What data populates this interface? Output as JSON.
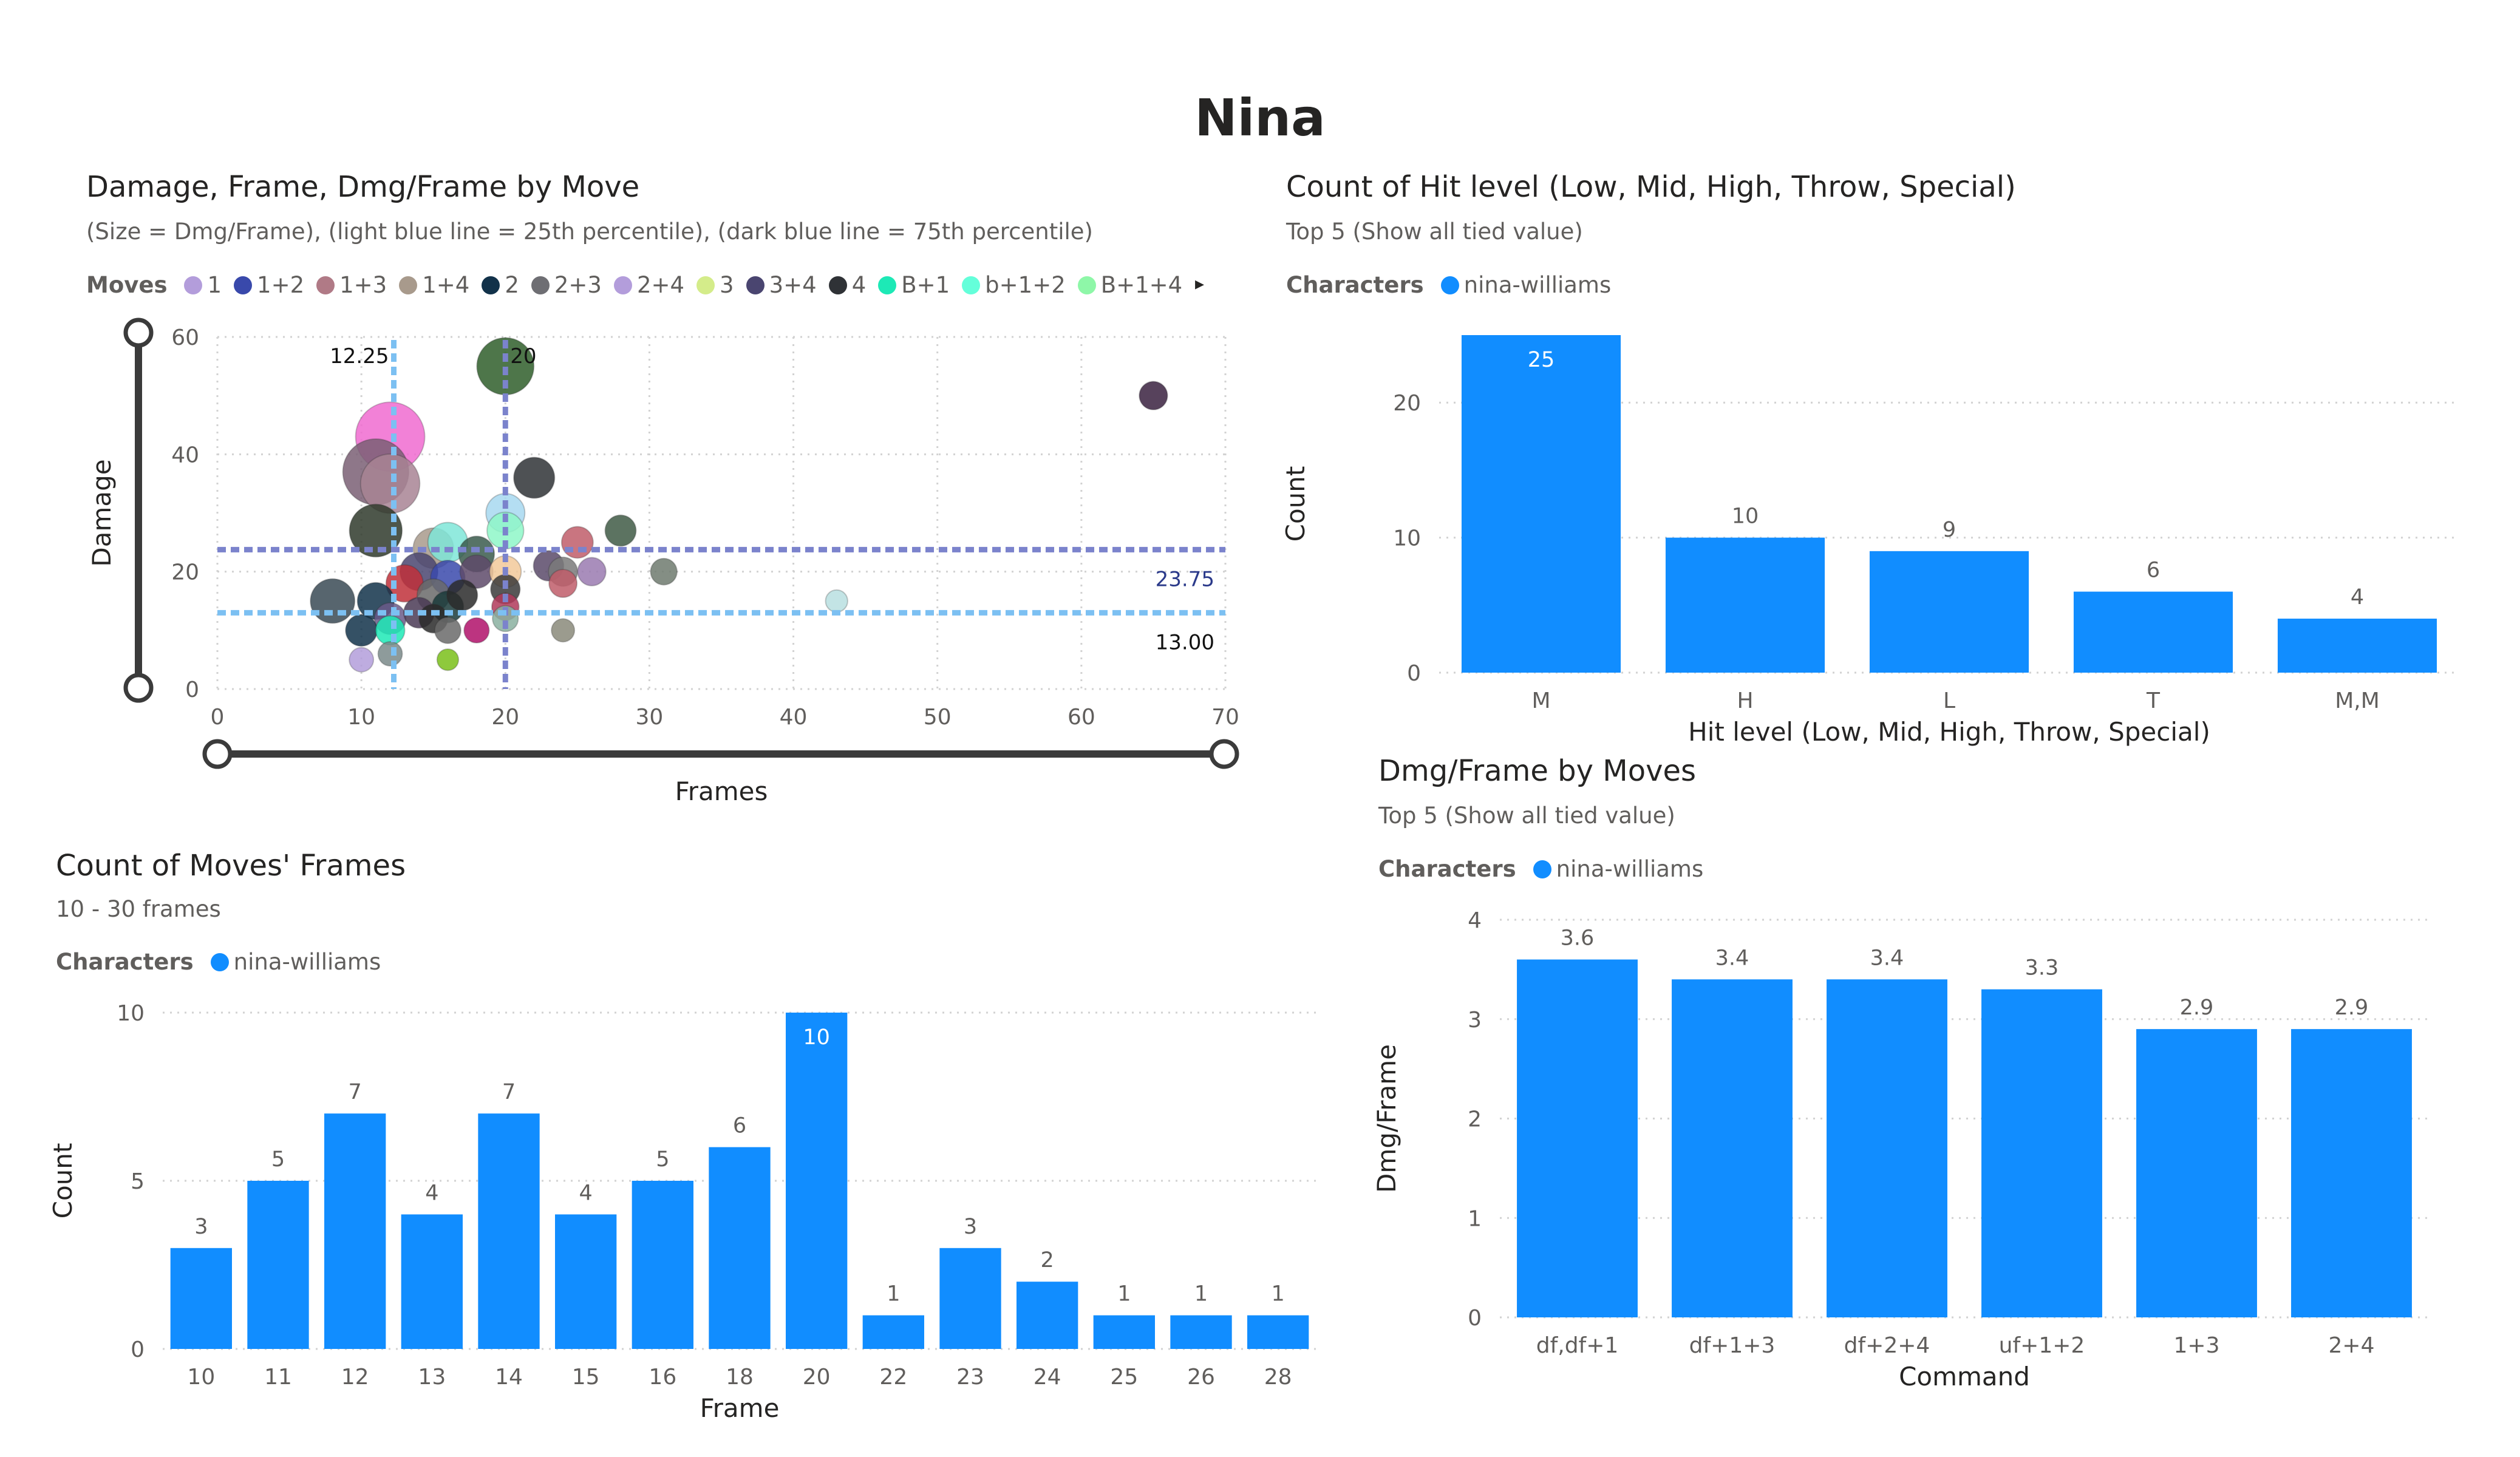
{
  "page": {
    "title": "Nina"
  },
  "scatter": {
    "title": "Damage, Frame, Dmg/Frame by Move",
    "subtitle": "(Size = Dmg/Frame), (light blue line = 25th percentile), (dark blue line = 75th percentile)",
    "legend_title": "Moves",
    "legend": [
      {
        "name": "1",
        "color": "#b39ddb"
      },
      {
        "name": "1+2",
        "color": "#3949ab"
      },
      {
        "name": "1+3",
        "color": "#b07a86"
      },
      {
        "name": "1+4",
        "color": "#a89a8c"
      },
      {
        "name": "2",
        "color": "#12324a"
      },
      {
        "name": "2+3",
        "color": "#6e6e73"
      },
      {
        "name": "2+4",
        "color": "#b39ddb"
      },
      {
        "name": "3",
        "color": "#d4ec8a"
      },
      {
        "name": "3+4",
        "color": "#4a4570"
      },
      {
        "name": "4",
        "color": "#2f3236"
      },
      {
        "name": "B+1",
        "color": "#1de9b6"
      },
      {
        "name": "b+1+2",
        "color": "#64ffda"
      },
      {
        "name": "B+1+4",
        "color": "#8ef7a8"
      }
    ]
  },
  "hit": {
    "title": "Count of Hit level (Low, Mid, High, Throw, Special)",
    "subtitle": "Top 5 (Show all tied value)",
    "legend_title": "Characters",
    "legend_name": "nina-williams"
  },
  "moves": {
    "title": "Count of Moves' Frames",
    "subtitle": "10 - 30 frames",
    "legend_title": "Characters",
    "legend_name": "nina-williams"
  },
  "dmg": {
    "title": "Dmg/Frame by Moves",
    "subtitle": "Top 5 (Show all tied value)",
    "legend_title": "Characters",
    "legend_name": "nina-williams"
  },
  "colors": {
    "bar": "#118dff",
    "p25": "#7cc0f2",
    "p75": "#7b83cc"
  },
  "chart_data": [
    {
      "type": "scatter",
      "title": "Damage, Frame, Dmg/Frame by Move",
      "xlabel": "Frames",
      "ylabel": "Damage",
      "xlim": [
        0,
        70
      ],
      "ylim": [
        0,
        60
      ],
      "xticks": [
        "0",
        "10",
        "20",
        "30",
        "40",
        "50",
        "60",
        "70"
      ],
      "yticks": [
        "0",
        "20",
        "40",
        "60"
      ],
      "grid": true,
      "legend_position": "top",
      "reference_lines": {
        "x": [
          {
            "value": 12.25,
            "label": "12.25",
            "color": "#7cc0f2"
          },
          {
            "value": 20,
            "label": "20",
            "color": "#7b83cc"
          }
        ],
        "y": [
          {
            "value": 13.0,
            "label": "13.00",
            "color": "#7cc0f2"
          },
          {
            "value": 23.75,
            "label": "23.75",
            "color": "#7b83cc"
          }
        ]
      },
      "points": [
        {
          "x": 20,
          "y": 55,
          "size": 2.75,
          "color": "#2f5e2a"
        },
        {
          "x": 65,
          "y": 50,
          "size": 0.77,
          "color": "#3a2140"
        },
        {
          "x": 12,
          "y": 43,
          "size": 3.58,
          "color": "#f06bd0"
        },
        {
          "x": 11,
          "y": 37,
          "size": 3.36,
          "color": "#7a5f74"
        },
        {
          "x": 12,
          "y": 35,
          "size": 2.9,
          "color": "#a88494"
        },
        {
          "x": 22,
          "y": 36,
          "size": 1.64,
          "color": "#2f3236"
        },
        {
          "x": 11,
          "y": 27,
          "size": 2.45,
          "color": "#2f3a2c"
        },
        {
          "x": 28,
          "y": 27,
          "size": 0.96,
          "color": "#3f5a45"
        },
        {
          "x": 20,
          "y": 30,
          "size": 1.5,
          "color": "#a7d8f0"
        },
        {
          "x": 20,
          "y": 27,
          "size": 1.35,
          "color": "#8ef7c8"
        },
        {
          "x": 25,
          "y": 25,
          "size": 1.0,
          "color": "#c05d6a"
        },
        {
          "x": 16,
          "y": 25,
          "size": 1.56,
          "color": "#7fe6d8"
        },
        {
          "x": 15,
          "y": 24,
          "size": 1.6,
          "color": "#a89a8c"
        },
        {
          "x": 18,
          "y": 23,
          "size": 1.28,
          "color": "#3a5a4c"
        },
        {
          "x": 14,
          "y": 20,
          "size": 1.43,
          "color": "#4a4570"
        },
        {
          "x": 16,
          "y": 19,
          "size": 1.19,
          "color": "#3949ab"
        },
        {
          "x": 18,
          "y": 20,
          "size": 1.11,
          "color": "#5e4a6a"
        },
        {
          "x": 20,
          "y": 20,
          "size": 1.0,
          "color": "#f2c99a"
        },
        {
          "x": 23,
          "y": 21,
          "size": 0.91,
          "color": "#5a4a6a"
        },
        {
          "x": 24,
          "y": 20,
          "size": 0.83,
          "color": "#7a7a7a"
        },
        {
          "x": 26,
          "y": 20,
          "size": 0.77,
          "color": "#9a7ab0"
        },
        {
          "x": 31,
          "y": 20,
          "size": 0.65,
          "color": "#6e7a6e"
        },
        {
          "x": 8,
          "y": 15,
          "size": 1.88,
          "color": "#3a4a55"
        },
        {
          "x": 11,
          "y": 15,
          "size": 1.36,
          "color": "#12324a"
        },
        {
          "x": 13,
          "y": 18,
          "size": 1.38,
          "color": "#c0303a"
        },
        {
          "x": 15,
          "y": 16,
          "size": 1.07,
          "color": "#6a6a6a"
        },
        {
          "x": 16,
          "y": 14,
          "size": 1.0,
          "color": "#1a3a3a"
        },
        {
          "x": 14,
          "y": 13,
          "size": 0.93,
          "color": "#4a3a55"
        },
        {
          "x": 17,
          "y": 16,
          "size": 0.94,
          "color": "#2a2a2a"
        },
        {
          "x": 20,
          "y": 17,
          "size": 0.85,
          "color": "#3a3a3a"
        },
        {
          "x": 20,
          "y": 14,
          "size": 0.7,
          "color": "#b03a5a"
        },
        {
          "x": 24,
          "y": 18,
          "size": 0.75,
          "color": "#c05d6a"
        },
        {
          "x": 12,
          "y": 12,
          "size": 1.0,
          "color": "#6a5a8a"
        },
        {
          "x": 10,
          "y": 10,
          "size": 1.0,
          "color": "#12324a"
        },
        {
          "x": 12,
          "y": 10,
          "size": 0.83,
          "color": "#1de9b6"
        },
        {
          "x": 15,
          "y": 12,
          "size": 0.8,
          "color": "#2a2a2a"
        },
        {
          "x": 16,
          "y": 10,
          "size": 0.63,
          "color": "#6a6a6a"
        },
        {
          "x": 18,
          "y": 10,
          "size": 0.56,
          "color": "#b0106a"
        },
        {
          "x": 20,
          "y": 12,
          "size": 0.6,
          "color": "#8ab0a0"
        },
        {
          "x": 24,
          "y": 10,
          "size": 0.42,
          "color": "#8a8a7a"
        },
        {
          "x": 43,
          "y": 15,
          "size": 0.35,
          "color": "#b8dfe0"
        },
        {
          "x": 10,
          "y": 5,
          "size": 0.5,
          "color": "#b39ddb"
        },
        {
          "x": 12,
          "y": 6,
          "size": 0.5,
          "color": "#7a8a8a"
        },
        {
          "x": 16,
          "y": 5,
          "size": 0.31,
          "color": "#7ac01a"
        }
      ]
    },
    {
      "type": "bar",
      "title": "Count of Hit level (Low, Mid, High, Throw, Special)",
      "xlabel": "Hit level (Low, Mid, High, Throw, Special)",
      "ylabel": "Count",
      "categories": [
        "M",
        "H",
        "L",
        "T",
        "M,M"
      ],
      "series": [
        {
          "name": "nina-williams",
          "values": [
            25,
            10,
            9,
            6,
            4
          ]
        }
      ],
      "ylim": [
        0,
        25
      ],
      "yticks": [
        "0",
        "10",
        "20"
      ]
    },
    {
      "type": "bar",
      "title": "Count of Moves' Frames",
      "xlabel": "Frame",
      "ylabel": "Count",
      "categories": [
        "10",
        "11",
        "12",
        "13",
        "14",
        "15",
        "16",
        "18",
        "20",
        "22",
        "23",
        "24",
        "25",
        "26",
        "28"
      ],
      "series": [
        {
          "name": "nina-williams",
          "values": [
            3,
            5,
            7,
            4,
            7,
            4,
            5,
            6,
            10,
            1,
            3,
            2,
            1,
            1,
            1
          ]
        }
      ],
      "ylim": [
        0,
        10
      ],
      "yticks": [
        "0",
        "5",
        "10"
      ]
    },
    {
      "type": "bar",
      "title": "Dmg/Frame by Moves",
      "xlabel": "Command",
      "ylabel": "Dmg/Frame",
      "categories": [
        "df,df+1",
        "df+1+3",
        "df+2+4",
        "uf+1+2",
        "1+3",
        "2+4"
      ],
      "series": [
        {
          "name": "nina-williams",
          "values": [
            3.6,
            3.4,
            3.4,
            3.3,
            2.9,
            2.9
          ]
        }
      ],
      "ylim": [
        0,
        4
      ],
      "yticks": [
        "0",
        "1",
        "2",
        "3",
        "4"
      ]
    }
  ]
}
